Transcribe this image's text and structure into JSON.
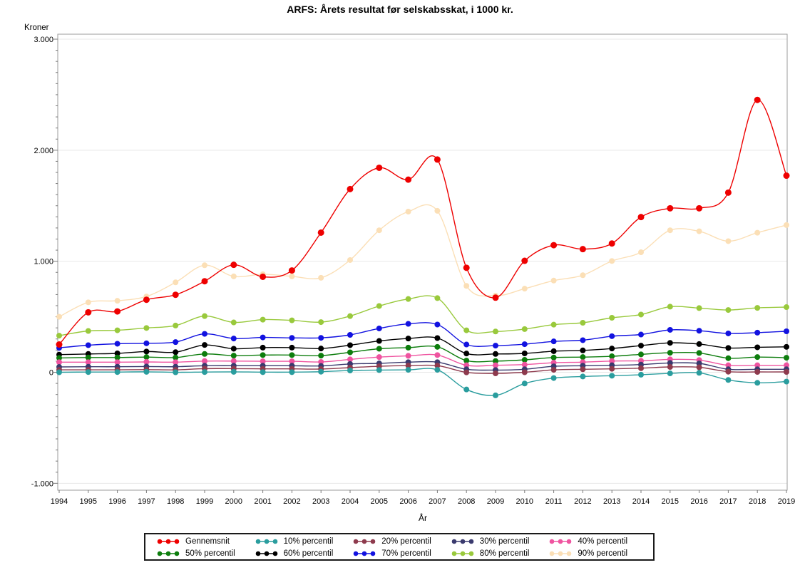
{
  "page": {
    "background": "#ffffff"
  },
  "chart_data": {
    "type": "line",
    "title": "ARFS: Årets resultat før selskabsskat, i 1000 kr.",
    "ylabel": "Kroner",
    "xlabel": "År",
    "x": [
      1994,
      1995,
      1996,
      1997,
      1998,
      1999,
      2000,
      2001,
      2002,
      2003,
      2004,
      2005,
      2006,
      2007,
      2008,
      2009,
      2010,
      2011,
      2012,
      2013,
      2014,
      2015,
      2016,
      2017,
      2018,
      2019
    ],
    "ylim": [
      -1000,
      3000
    ],
    "ytick_values": [
      3000,
      2000,
      1000,
      0,
      -1000
    ],
    "ytick_labels": [
      "3.000",
      "2.000",
      "1.000",
      "0",
      "-1.000"
    ],
    "minor_tick_step": 100,
    "grid": true,
    "grid_color": "#e8e8e8",
    "axis_color": "#9b9b9b",
    "tick_color": "#7a7a7a",
    "legend_position": "bottom",
    "series": [
      {
        "name": "Gennemsnit",
        "color": "#ee0000",
        "values": [
          250,
          540,
          548,
          653,
          698,
          820,
          968,
          860,
          917,
          1258,
          1650,
          1842,
          1735,
          1916,
          941,
          672,
          1004,
          1145,
          1109,
          1160,
          1398,
          1477,
          1477,
          1618,
          2453,
          1771
        ]
      },
      {
        "name": "10% percentil",
        "color": "#2a9d9e",
        "values": [
          0,
          2,
          2,
          4,
          0,
          2,
          4,
          1,
          1,
          5,
          16,
          20,
          22,
          22,
          -155,
          -208,
          -101,
          -52,
          -38,
          -31,
          -22,
          -10,
          -5,
          -69,
          -95,
          -84
        ]
      },
      {
        "name": "20% percentil",
        "color": "#8e3a4d",
        "values": [
          22,
          22,
          22,
          24,
          22,
          33,
          33,
          31,
          31,
          29,
          42,
          54,
          60,
          60,
          -1,
          -10,
          0,
          22,
          27,
          31,
          37,
          48,
          45,
          5,
          3,
          3
        ]
      },
      {
        "name": "30% percentil",
        "color": "#3a3a6e",
        "values": [
          48,
          50,
          50,
          52,
          50,
          59,
          59,
          59,
          59,
          57,
          75,
          80,
          91,
          91,
          27,
          20,
          27,
          54,
          59,
          63,
          69,
          84,
          80,
          27,
          27,
          27
        ]
      },
      {
        "name": "40% percentil",
        "color": "#ef54a0",
        "values": [
          91,
          91,
          91,
          93,
          91,
          101,
          101,
          99,
          99,
          93,
          116,
          137,
          148,
          155,
          63,
          63,
          69,
          86,
          91,
          101,
          103,
          116,
          110,
          63,
          63,
          63
        ]
      },
      {
        "name": "50% percentil",
        "color": "#0d7d0d",
        "values": [
          129,
          133,
          133,
          137,
          133,
          165,
          150,
          155,
          155,
          150,
          180,
          212,
          222,
          229,
          105,
          101,
          112,
          133,
          137,
          144,
          161,
          176,
          174,
          127,
          137,
          131
        ]
      },
      {
        "name": "60% percentil",
        "color": "#000000",
        "values": [
          159,
          165,
          170,
          187,
          181,
          246,
          212,
          222,
          222,
          214,
          244,
          282,
          304,
          308,
          169,
          165,
          170,
          190,
          197,
          214,
          240,
          265,
          254,
          219,
          225,
          229
        ]
      },
      {
        "name": "70% percentil",
        "color": "#1212e0",
        "values": [
          220,
          244,
          257,
          261,
          272,
          346,
          304,
          314,
          310,
          310,
          337,
          395,
          436,
          430,
          250,
          240,
          253,
          278,
          289,
          325,
          340,
          382,
          374,
          350,
          357,
          369
        ]
      },
      {
        "name": "80% percentil",
        "color": "#99c93c",
        "values": [
          330,
          372,
          378,
          399,
          421,
          506,
          449,
          474,
          468,
          452,
          506,
          597,
          660,
          668,
          378,
          367,
          389,
          429,
          446,
          491,
          520,
          591,
          578,
          561,
          580,
          587
        ]
      },
      {
        "name": "90% percentil",
        "color": "#fbdfb6",
        "values": [
          500,
          630,
          644,
          683,
          810,
          964,
          864,
          883,
          864,
          851,
          1011,
          1279,
          1447,
          1454,
          778,
          691,
          753,
          826,
          874,
          1002,
          1081,
          1279,
          1270,
          1181,
          1257,
          1326
        ]
      }
    ]
  }
}
